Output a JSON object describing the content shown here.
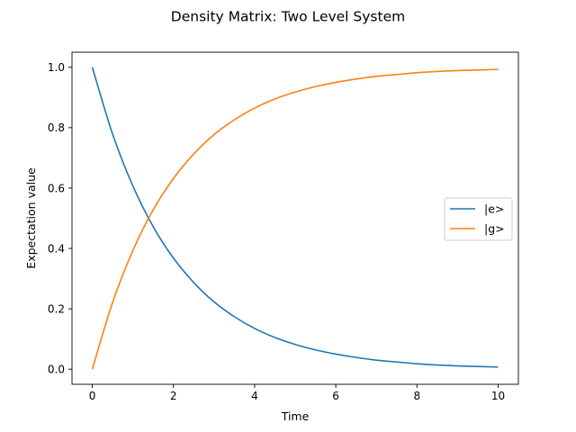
{
  "chart_data": {
    "type": "line",
    "title": "Density Matrix: Two Level System",
    "xlabel": "Time",
    "ylabel": "Expectation value",
    "xlim": [
      -0.5,
      10.5
    ],
    "ylim": [
      -0.05,
      1.05
    ],
    "xticks": [
      0,
      2,
      4,
      6,
      8,
      10
    ],
    "xtick_labels": [
      "0",
      "2",
      "4",
      "6",
      "8",
      "10"
    ],
    "yticks": [
      0.0,
      0.2,
      0.4,
      0.6,
      0.8,
      1.0
    ],
    "ytick_labels": [
      "0.0",
      "0.2",
      "0.4",
      "0.6",
      "0.8",
      "1.0"
    ],
    "grid": false,
    "legend_position": "center-right",
    "series": [
      {
        "name": "|e>",
        "color": "#1f77b4",
        "x": [
          0,
          0.5,
          1,
          1.5,
          2,
          2.5,
          3,
          3.5,
          4,
          4.5,
          5,
          5.5,
          6,
          6.5,
          7,
          7.5,
          8,
          8.5,
          9,
          9.5,
          10
        ],
        "y": [
          1.0,
          0.779,
          0.607,
          0.472,
          0.368,
          0.287,
          0.223,
          0.174,
          0.135,
          0.105,
          0.082,
          0.064,
          0.05,
          0.039,
          0.03,
          0.024,
          0.018,
          0.014,
          0.011,
          0.009,
          0.007
        ]
      },
      {
        "name": "|g>",
        "color": "#ff7f0e",
        "x": [
          0,
          0.5,
          1,
          1.5,
          2,
          2.5,
          3,
          3.5,
          4,
          4.5,
          5,
          5.5,
          6,
          6.5,
          7,
          7.5,
          8,
          8.5,
          9,
          9.5,
          10
        ],
        "y": [
          0.0,
          0.221,
          0.393,
          0.528,
          0.632,
          0.713,
          0.777,
          0.826,
          0.865,
          0.895,
          0.918,
          0.936,
          0.95,
          0.961,
          0.97,
          0.976,
          0.982,
          0.986,
          0.989,
          0.991,
          0.993
        ]
      }
    ]
  }
}
